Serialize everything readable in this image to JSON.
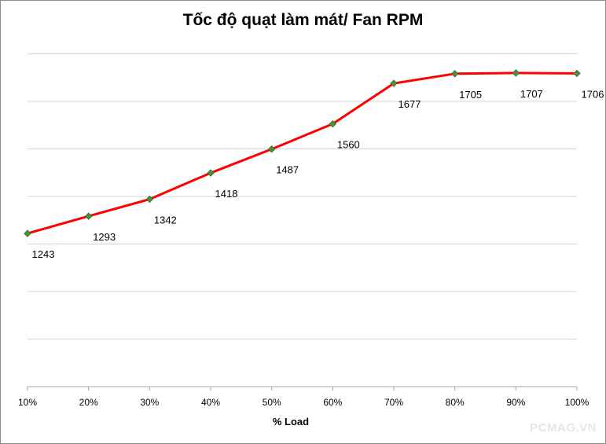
{
  "chart_data": {
    "type": "line",
    "title": "Tốc độ quạt làm mát/ Fan RPM",
    "xlabel": "% Load",
    "ylabel": "",
    "categories": [
      "10%",
      "20%",
      "30%",
      "40%",
      "50%",
      "60%",
      "70%",
      "80%",
      "90%",
      "100%"
    ],
    "series": [
      {
        "name": "Fan RPM",
        "values": [
          1243,
          1293,
          1342,
          1418,
          1487,
          1560,
          1677,
          1705,
          1707,
          1706
        ],
        "color": "#ff0000",
        "marker_color": "#4e8f3a"
      }
    ],
    "ylim": [
      800,
      1900
    ],
    "grid": true,
    "legend": "none"
  },
  "watermark": "PCMAG.VN",
  "colors": {
    "grid": "#c5d5ea",
    "axis": "#a6a6a6"
  }
}
